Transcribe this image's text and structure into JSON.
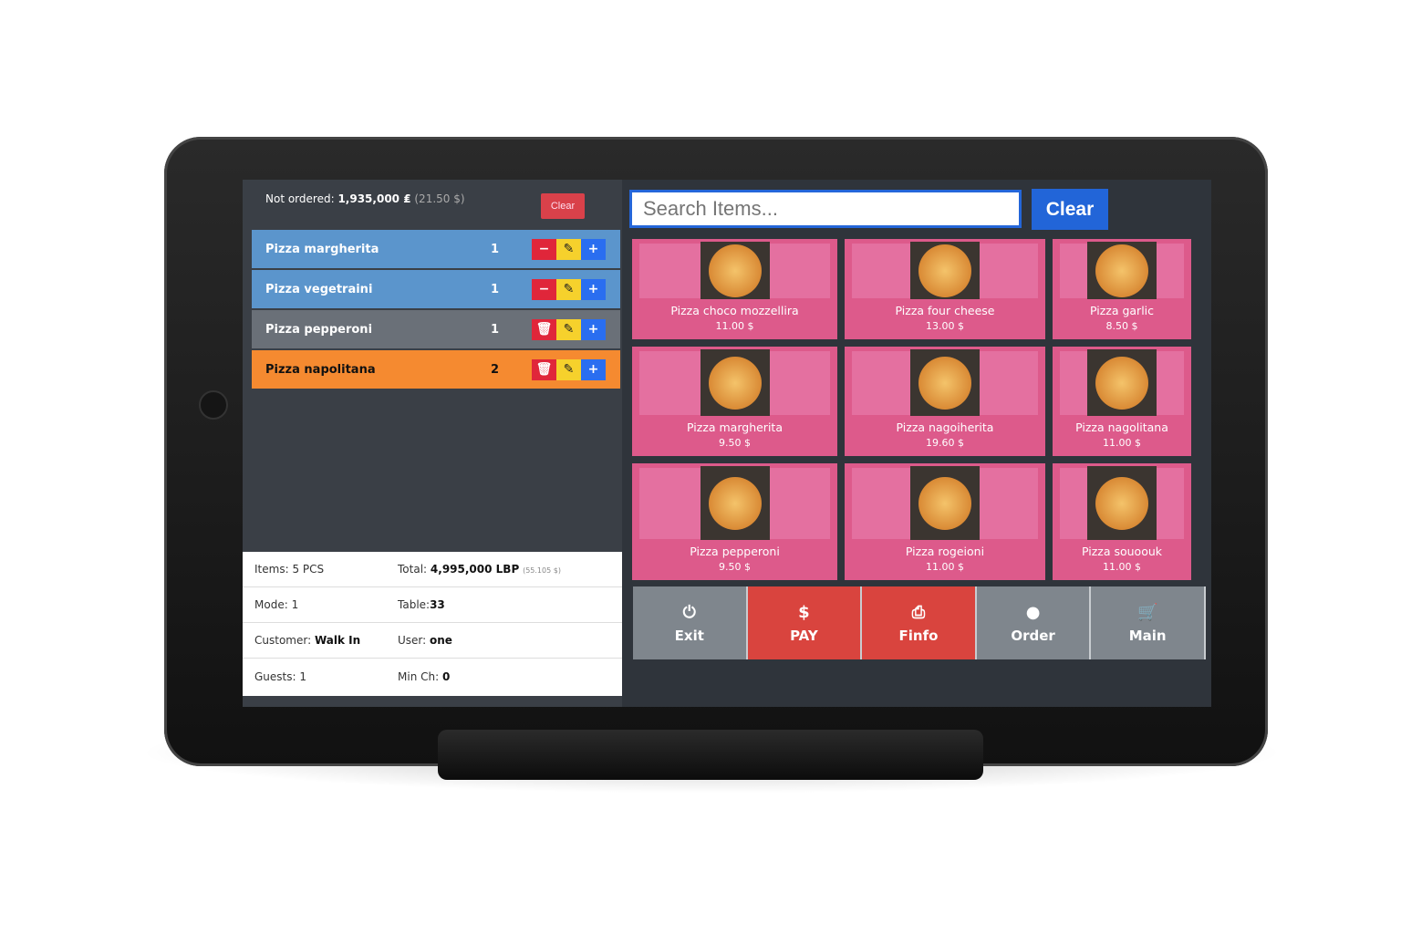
{
  "order": {
    "not_ordered_label": "Not ordered:",
    "not_ordered_value": "1,935,000 ₤",
    "not_ordered_usd": "(21.50 $)",
    "clear_label": "Clear",
    "items": [
      {
        "name": "Pizza margherita",
        "qty": "1",
        "color": "#5b95cc",
        "first": "minus"
      },
      {
        "name": "Pizza vegetraini",
        "qty": "1",
        "color": "#5b95cc",
        "first": "minus"
      },
      {
        "name": "Pizza pepperoni",
        "qty": "1",
        "color": "#6a7078",
        "first": "trash"
      },
      {
        "name": "Pizza napolitana",
        "qty": "2",
        "color": "#f58a30",
        "first": "trash"
      }
    ]
  },
  "summary": {
    "items_label": "Items:",
    "items_value": "5 PCS",
    "total_label": "Total:",
    "total_value": "4,995,000 LBP",
    "total_usd": "(55.105 $)",
    "mode_label": "Mode:",
    "mode_value": "1",
    "table_label": "Table:",
    "table_value": "33",
    "customer_label": "Customer:",
    "customer_value": "Walk In",
    "user_label": "User:",
    "user_value": "one",
    "guests_label": "Guests:",
    "guests_value": "1",
    "minch_label": "Min Ch:",
    "minch_value": "0"
  },
  "search": {
    "placeholder": "Search Items...",
    "clear_label": "Clear"
  },
  "products": [
    {
      "name": "Pizza choco mozzellira",
      "price": "11.00 $"
    },
    {
      "name": "Pizza four cheese",
      "price": "13.00 $"
    },
    {
      "name": "Pizza garlic",
      "price": "8.50 $"
    },
    {
      "name": "Pizza margherita",
      "price": "9.50 $"
    },
    {
      "name": "Pizza nagoiherita",
      "price": "19.60 $"
    },
    {
      "name": "Pizza nagolitana",
      "price": "11.00 $"
    },
    {
      "name": "Pizza pepperoni",
      "price": "9.50 $"
    },
    {
      "name": "Pizza rogeioni",
      "price": "11.00 $"
    },
    {
      "name": "Pizza souoouk",
      "price": "11.00 $"
    }
  ],
  "actions": [
    {
      "label": "Exit",
      "icon": "power-icon",
      "glyph": "⏻",
      "style": "gray"
    },
    {
      "label": "PAY",
      "icon": "money-icon",
      "glyph": "$",
      "style": "red"
    },
    {
      "label": "Finfo",
      "icon": "print-icon",
      "glyph": "⎙",
      "style": "red"
    },
    {
      "label": "Order",
      "icon": "coin-icon",
      "glyph": "●",
      "style": "gray"
    },
    {
      "label": "Main",
      "icon": "cart-icon",
      "glyph": "🛒",
      "style": "gray"
    }
  ],
  "colors": {
    "accent": "#2265d8",
    "product": "#dd5a8b",
    "danger": "#d9443e"
  }
}
